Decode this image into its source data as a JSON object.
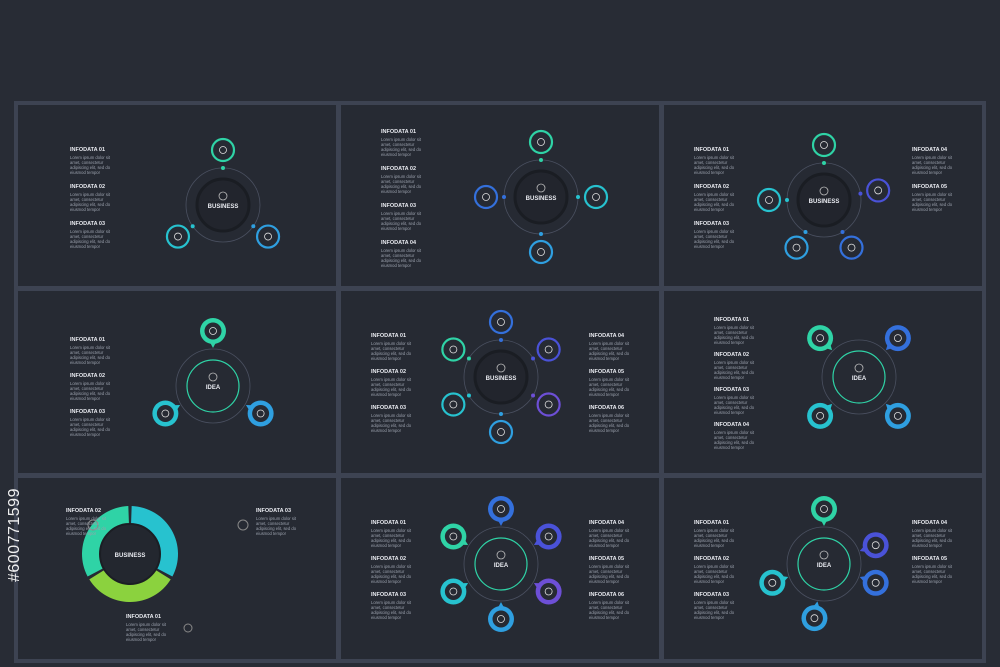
{
  "stock_id": "#600771599",
  "panels": [
    {
      "center": "BUSINESS",
      "items": [
        {
          "title": "INFODATA 01",
          "text": "Lorem ipsum dolor sit amet, consectetur adipiscing elit, sed do eiusmod tempor"
        },
        {
          "title": "INFODATA 02",
          "text": "Lorem ipsum dolor sit amet, consectetur adipiscing elit, sed do eiusmod tempor"
        },
        {
          "title": "INFODATA 03",
          "text": "Lorem ipsum dolor sit amet, consectetur adipiscing elit, sed do eiusmod tempor"
        }
      ]
    },
    {
      "center": "BUSINESS",
      "items": [
        {
          "title": "INFODATA 01",
          "text": "Lorem ipsum dolor sit amet, consectetur adipiscing elit, sed do eiusmod tempor"
        },
        {
          "title": "INFODATA 02",
          "text": "Lorem ipsum dolor sit amet, consectetur adipiscing elit, sed do eiusmod tempor"
        },
        {
          "title": "INFODATA 03",
          "text": "Lorem ipsum dolor sit amet, consectetur adipiscing elit, sed do eiusmod tempor"
        },
        {
          "title": "INFODATA 04",
          "text": "Lorem ipsum dolor sit amet, consectetur adipiscing elit, sed do eiusmod tempor"
        }
      ]
    },
    {
      "center": "BUSINESS",
      "items": [
        {
          "title": "INFODATA 01",
          "text": "Lorem ipsum dolor sit amet, consectetur adipiscing elit, sed do eiusmod tempor"
        },
        {
          "title": "INFODATA 02",
          "text": "Lorem ipsum dolor sit amet, consectetur adipiscing elit, sed do eiusmod tempor"
        },
        {
          "title": "INFODATA 03",
          "text": "Lorem ipsum dolor sit amet, consectetur adipiscing elit, sed do eiusmod tempor"
        },
        {
          "title": "INFODATA 04",
          "text": "Lorem ipsum dolor sit amet, consectetur adipiscing elit, sed do eiusmod tempor"
        },
        {
          "title": "INFODATA 05",
          "text": "Lorem ipsum dolor sit amet, consectetur adipiscing elit, sed do eiusmod tempor"
        }
      ]
    },
    {
      "center": "IDEA",
      "items": [
        {
          "title": "INFODATA 01",
          "text": "Lorem ipsum dolor sit amet, consectetur adipiscing elit, sed do eiusmod tempor"
        },
        {
          "title": "INFODATA 02",
          "text": "Lorem ipsum dolor sit amet, consectetur adipiscing elit, sed do eiusmod tempor"
        },
        {
          "title": "INFODATA 03",
          "text": "Lorem ipsum dolor sit amet, consectetur adipiscing elit, sed do eiusmod tempor"
        }
      ]
    },
    {
      "center": "BUSINESS",
      "items": [
        {
          "title": "INFODATA 01",
          "text": "Lorem ipsum dolor sit amet, consectetur adipiscing elit, sed do eiusmod tempor"
        },
        {
          "title": "INFODATA 02",
          "text": "Lorem ipsum dolor sit amet, consectetur adipiscing elit, sed do eiusmod tempor"
        },
        {
          "title": "INFODATA 03",
          "text": "Lorem ipsum dolor sit amet, consectetur adipiscing elit, sed do eiusmod tempor"
        },
        {
          "title": "INFODATA 04",
          "text": "Lorem ipsum dolor sit amet, consectetur adipiscing elit, sed do eiusmod tempor"
        },
        {
          "title": "INFODATA 05",
          "text": "Lorem ipsum dolor sit amet, consectetur adipiscing elit, sed do eiusmod tempor"
        },
        {
          "title": "INFODATA 06",
          "text": "Lorem ipsum dolor sit amet, consectetur adipiscing elit, sed do eiusmod tempor"
        }
      ]
    },
    {
      "center": "IDEA",
      "items": [
        {
          "title": "INFODATA 01",
          "text": "Lorem ipsum dolor sit amet, consectetur adipiscing elit, sed do eiusmod tempor"
        },
        {
          "title": "INFODATA 02",
          "text": "Lorem ipsum dolor sit amet, consectetur adipiscing elit, sed do eiusmod tempor"
        },
        {
          "title": "INFODATA 03",
          "text": "Lorem ipsum dolor sit amet, consectetur adipiscing elit, sed do eiusmod tempor"
        },
        {
          "title": "INFODATA 04",
          "text": "Lorem ipsum dolor sit amet, consectetur adipiscing elit, sed do eiusmod tempor"
        }
      ]
    },
    {
      "center": "BUSINESS",
      "items": [
        {
          "title": "INFODATA 02",
          "text": "Lorem ipsum dolor sit amet, consectetur adipiscing elit, sed do eiusmod tempor"
        },
        {
          "title": "INFODATA 03",
          "text": "Lorem ipsum dolor sit amet, consectetur adipiscing elit, sed do eiusmod tempor"
        },
        {
          "title": "INFODATA 01",
          "text": "Lorem ipsum dolor sit amet, consectetur adipiscing elit, sed do eiusmod tempor"
        }
      ]
    },
    {
      "center": "IDEA",
      "items": [
        {
          "title": "INFODATA 01",
          "text": "Lorem ipsum dolor sit amet, consectetur adipiscing elit, sed do eiusmod tempor"
        },
        {
          "title": "INFODATA 02",
          "text": "Lorem ipsum dolor sit amet, consectetur adipiscing elit, sed do eiusmod tempor"
        },
        {
          "title": "INFODATA 03",
          "text": "Lorem ipsum dolor sit amet, consectetur adipiscing elit, sed do eiusmod tempor"
        },
        {
          "title": "INFODATA 04",
          "text": "Lorem ipsum dolor sit amet, consectetur adipiscing elit, sed do eiusmod tempor"
        },
        {
          "title": "INFODATA 05",
          "text": "Lorem ipsum dolor sit amet, consectetur adipiscing elit, sed do eiusmod tempor"
        },
        {
          "title": "INFODATA 06",
          "text": "Lorem ipsum dolor sit amet, consectetur adipiscing elit, sed do eiusmod tempor"
        }
      ]
    },
    {
      "center": "IDEA",
      "items": [
        {
          "title": "INFODATA 01",
          "text": "Lorem ipsum dolor sit amet, consectetur adipiscing elit, sed do eiusmod tempor"
        },
        {
          "title": "INFODATA 02",
          "text": "Lorem ipsum dolor sit amet, consectetur adipiscing elit, sed do eiusmod tempor"
        },
        {
          "title": "INFODATA 03",
          "text": "Lorem ipsum dolor sit amet, consectetur adipiscing elit, sed do eiusmod tempor"
        },
        {
          "title": "INFODATA 04",
          "text": "Lorem ipsum dolor sit amet, consectetur adipiscing elit, sed do eiusmod tempor"
        },
        {
          "title": "INFODATA 05",
          "text": "Lorem ipsum dolor sit amet, consectetur adipiscing elit, sed do eiusmod tempor"
        }
      ]
    }
  ]
}
